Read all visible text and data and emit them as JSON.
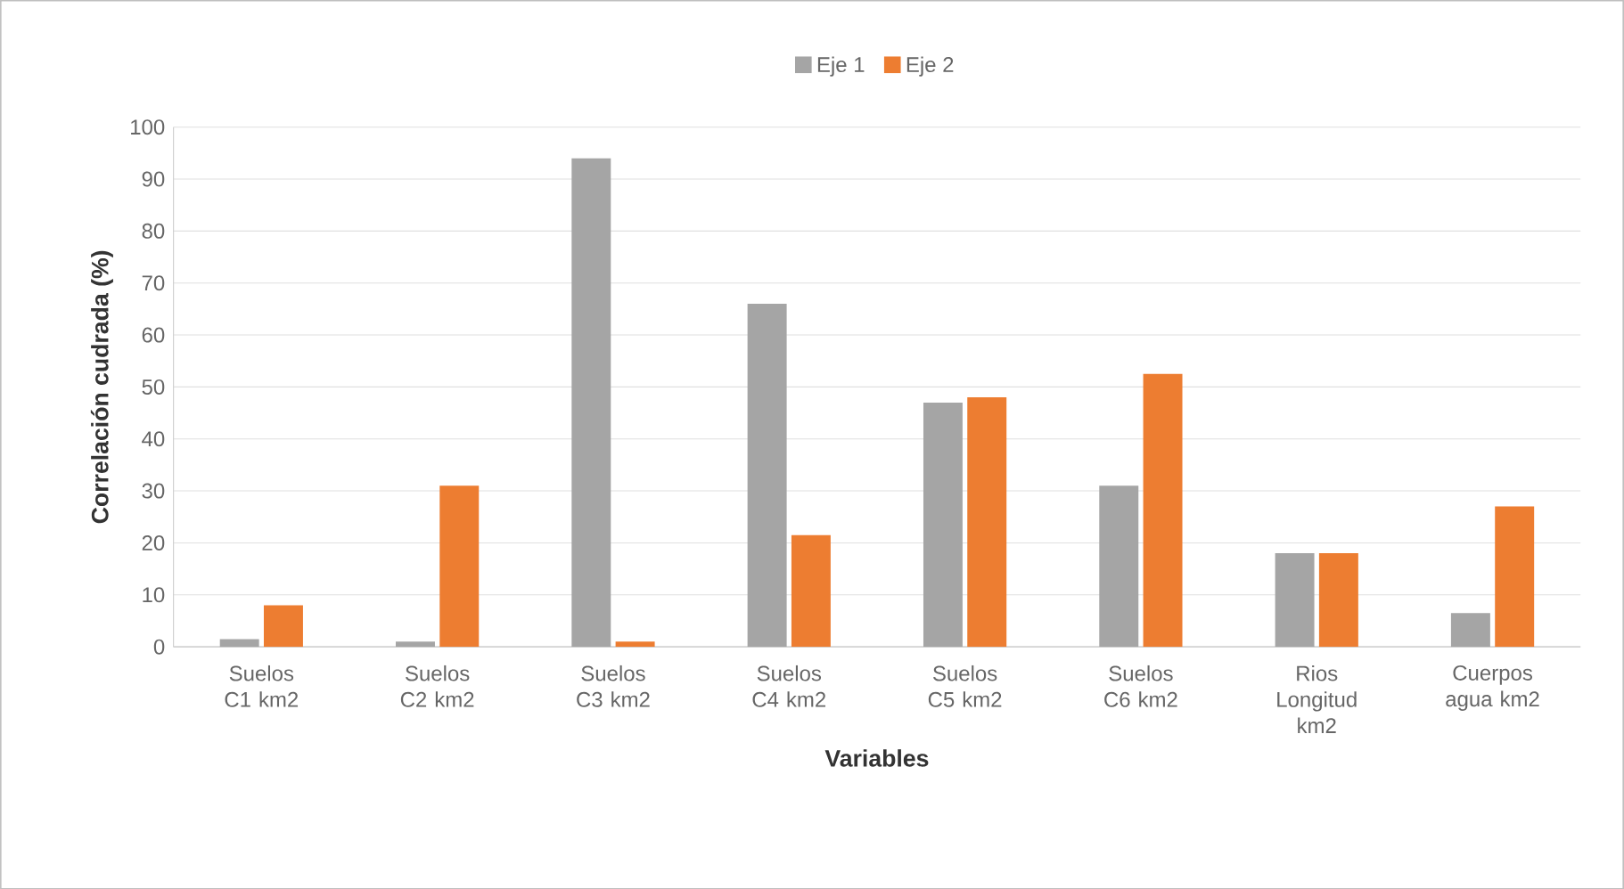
{
  "chart_data": {
    "type": "bar",
    "xlabel": "Variables",
    "ylabel": "Correlación cudrada (%)",
    "categories": [
      "Suelos C1 km2",
      "Suelos C2 km2",
      "Suelos C3 km2",
      "Suelos C4 km2",
      "Suelos C5 km2",
      "Suelos C6 km2",
      "Rios Longitud km2",
      "Cuerpos agua km2"
    ],
    "series": [
      {
        "name": "Eje 1",
        "color": "#a5a5a5",
        "values": [
          1.5,
          1,
          94,
          66,
          47,
          31,
          18,
          6.5
        ]
      },
      {
        "name": "Eje 2",
        "color": "#ed7d31",
        "values": [
          8,
          31,
          1,
          21.5,
          48,
          52.5,
          18,
          27
        ]
      }
    ],
    "ylim": [
      0,
      100
    ],
    "yticks": [
      0,
      10,
      20,
      30,
      40,
      50,
      60,
      70,
      80,
      90,
      100
    ],
    "grid": "y",
    "legend": "top"
  }
}
